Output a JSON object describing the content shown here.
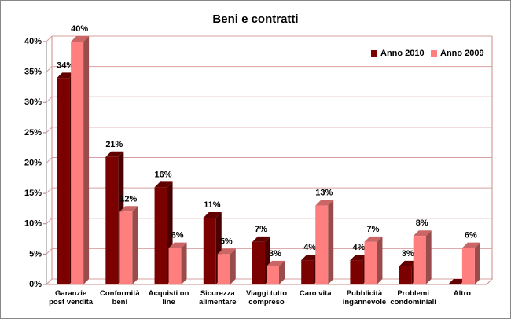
{
  "chart_data": {
    "type": "bar",
    "title": "Beni e contratti",
    "categories": [
      "Garanzie post vendita",
      "Conformità beni",
      "Acquisti on line",
      "Sicurezza alimentare",
      "Viaggi tutto compreso",
      "Caro vita",
      "Pubblicità ingannevole",
      "Problemi condominiali",
      "Altro"
    ],
    "series": [
      {
        "name": "Anno 2010",
        "color": "#7b0000",
        "values": [
          34,
          21,
          16,
          11,
          7,
          4,
          4,
          3,
          0
        ],
        "value_labels": [
          "34%",
          "21%",
          "16%",
          "11%",
          "7%",
          "4%",
          "4%",
          "3%",
          null
        ]
      },
      {
        "name": "Anno 2009",
        "color": "#ff7f7f",
        "values": [
          40,
          12,
          6,
          5,
          3,
          13,
          7,
          8,
          6
        ],
        "value_labels": [
          "40%",
          "12%",
          "6%",
          "5%",
          "3%",
          "13%",
          "7%",
          "8%",
          "6%"
        ]
      }
    ],
    "ylim": [
      0,
      40
    ],
    "yticks": [
      {
        "value": 0,
        "label": "0%"
      },
      {
        "value": 5,
        "label": "5%"
      },
      {
        "value": 10,
        "label": "10%"
      },
      {
        "value": 15,
        "label": "15%"
      },
      {
        "value": 20,
        "label": "20%"
      },
      {
        "value": 25,
        "label": "25%"
      },
      {
        "value": 30,
        "label": "30%"
      },
      {
        "value": 35,
        "label": "35%"
      },
      {
        "value": 40,
        "label": "40%"
      }
    ],
    "grid": true,
    "legend": "top-right"
  }
}
